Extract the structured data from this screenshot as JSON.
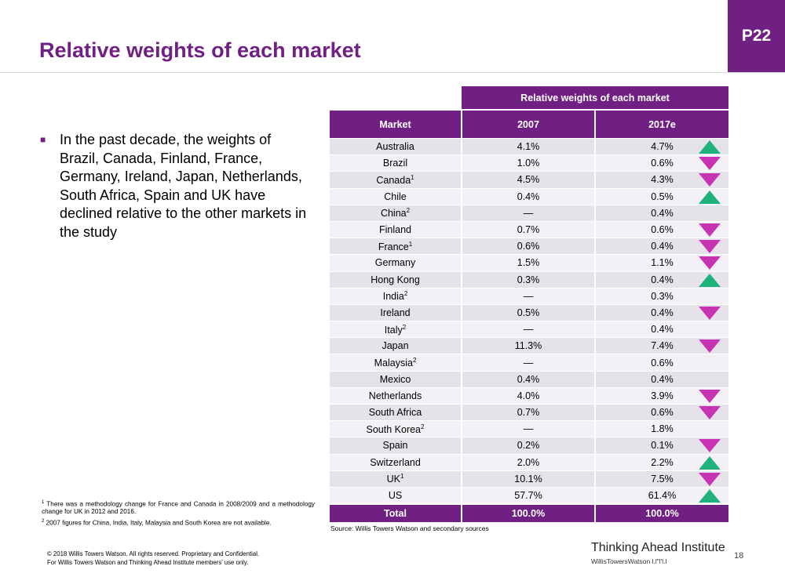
{
  "slide": {
    "badge": "P22",
    "title": "Relative weights of each market",
    "bullet": "In the past decade, the weights of Brazil, Canada, Finland, France, Germany, Ireland, Japan, Netherlands, South Africa, Spain and UK have declined relative to the other markets in the study",
    "footnote1": "There was a methodology change for France and Canada in 2008/2009 and a methodology change for UK in 2012 and 2016.",
    "footnote2": "2007 figures for China, India, Italy, Malaysia and South Korea are not available.",
    "source": "Source: Willis Towers Watson and secondary sources",
    "copyright_line1": "© 2018 Willis Towers Watson. All rights reserved. Proprietary and Confidential.",
    "copyright_line2": "For Willis Towers Watson and Thinking Ahead Institute members’ use only.",
    "brand": "Thinking Ahead Institute",
    "brand_sub": "WillisTowersWatson l.l\"l'l.l",
    "page_number": "18"
  },
  "colors": {
    "accent": "#702082",
    "up": "#1fb37c",
    "down": "#c833b4"
  },
  "table": {
    "group_header": "Relative weights of each market",
    "headers": [
      "Market",
      "2007",
      "2017e"
    ],
    "rows": [
      {
        "market": "Australia",
        "sup": "",
        "y2007": "4.1%",
        "y2017": "4.7%",
        "trend": "up"
      },
      {
        "market": "Brazil",
        "sup": "",
        "y2007": "1.0%",
        "y2017": "0.6%",
        "trend": "down"
      },
      {
        "market": "Canada",
        "sup": "1",
        "y2007": "4.5%",
        "y2017": "4.3%",
        "trend": "down"
      },
      {
        "market": "Chile",
        "sup": "",
        "y2007": "0.4%",
        "y2017": "0.5%",
        "trend": "up"
      },
      {
        "market": "China",
        "sup": "2",
        "y2007": "—",
        "y2017": "0.4%",
        "trend": ""
      },
      {
        "market": "Finland",
        "sup": "",
        "y2007": "0.7%",
        "y2017": "0.6%",
        "trend": "down"
      },
      {
        "market": "France",
        "sup": "1",
        "y2007": "0.6%",
        "y2017": "0.4%",
        "trend": "down"
      },
      {
        "market": "Germany",
        "sup": "",
        "y2007": "1.5%",
        "y2017": "1.1%",
        "trend": "down"
      },
      {
        "market": "Hong Kong",
        "sup": "",
        "y2007": "0.3%",
        "y2017": "0.4%",
        "trend": "up"
      },
      {
        "market": "India",
        "sup": "2",
        "y2007": "—",
        "y2017": "0.3%",
        "trend": ""
      },
      {
        "market": "Ireland",
        "sup": "",
        "y2007": "0.5%",
        "y2017": "0.4%",
        "trend": "down"
      },
      {
        "market": "Italy",
        "sup": "2",
        "y2007": "—",
        "y2017": "0.4%",
        "trend": ""
      },
      {
        "market": "Japan",
        "sup": "",
        "y2007": "11.3%",
        "y2017": "7.4%",
        "trend": "down"
      },
      {
        "market": "Malaysia",
        "sup": "2",
        "y2007": "—",
        "y2017": "0.6%",
        "trend": ""
      },
      {
        "market": "Mexico",
        "sup": "",
        "y2007": "0.4%",
        "y2017": "0.4%",
        "trend": ""
      },
      {
        "market": "Netherlands",
        "sup": "",
        "y2007": "4.0%",
        "y2017": "3.9%",
        "trend": "down"
      },
      {
        "market": "South Africa",
        "sup": "",
        "y2007": "0.7%",
        "y2017": "0.6%",
        "trend": "down"
      },
      {
        "market": "South Korea",
        "sup": "2",
        "y2007": "—",
        "y2017": "1.8%",
        "trend": ""
      },
      {
        "market": "Spain",
        "sup": "",
        "y2007": "0.2%",
        "y2017": "0.1%",
        "trend": "down"
      },
      {
        "market": "Switzerland",
        "sup": "",
        "y2007": "2.0%",
        "y2017": "2.2%",
        "trend": "up"
      },
      {
        "market": "UK",
        "sup": "1",
        "y2007": "10.1%",
        "y2017": "7.5%",
        "trend": "down"
      },
      {
        "market": "US",
        "sup": "",
        "y2007": "57.7%",
        "y2017": "61.4%",
        "trend": "up"
      }
    ],
    "total": {
      "market": "Total",
      "y2007": "100.0%",
      "y2017": "100.0%"
    }
  }
}
